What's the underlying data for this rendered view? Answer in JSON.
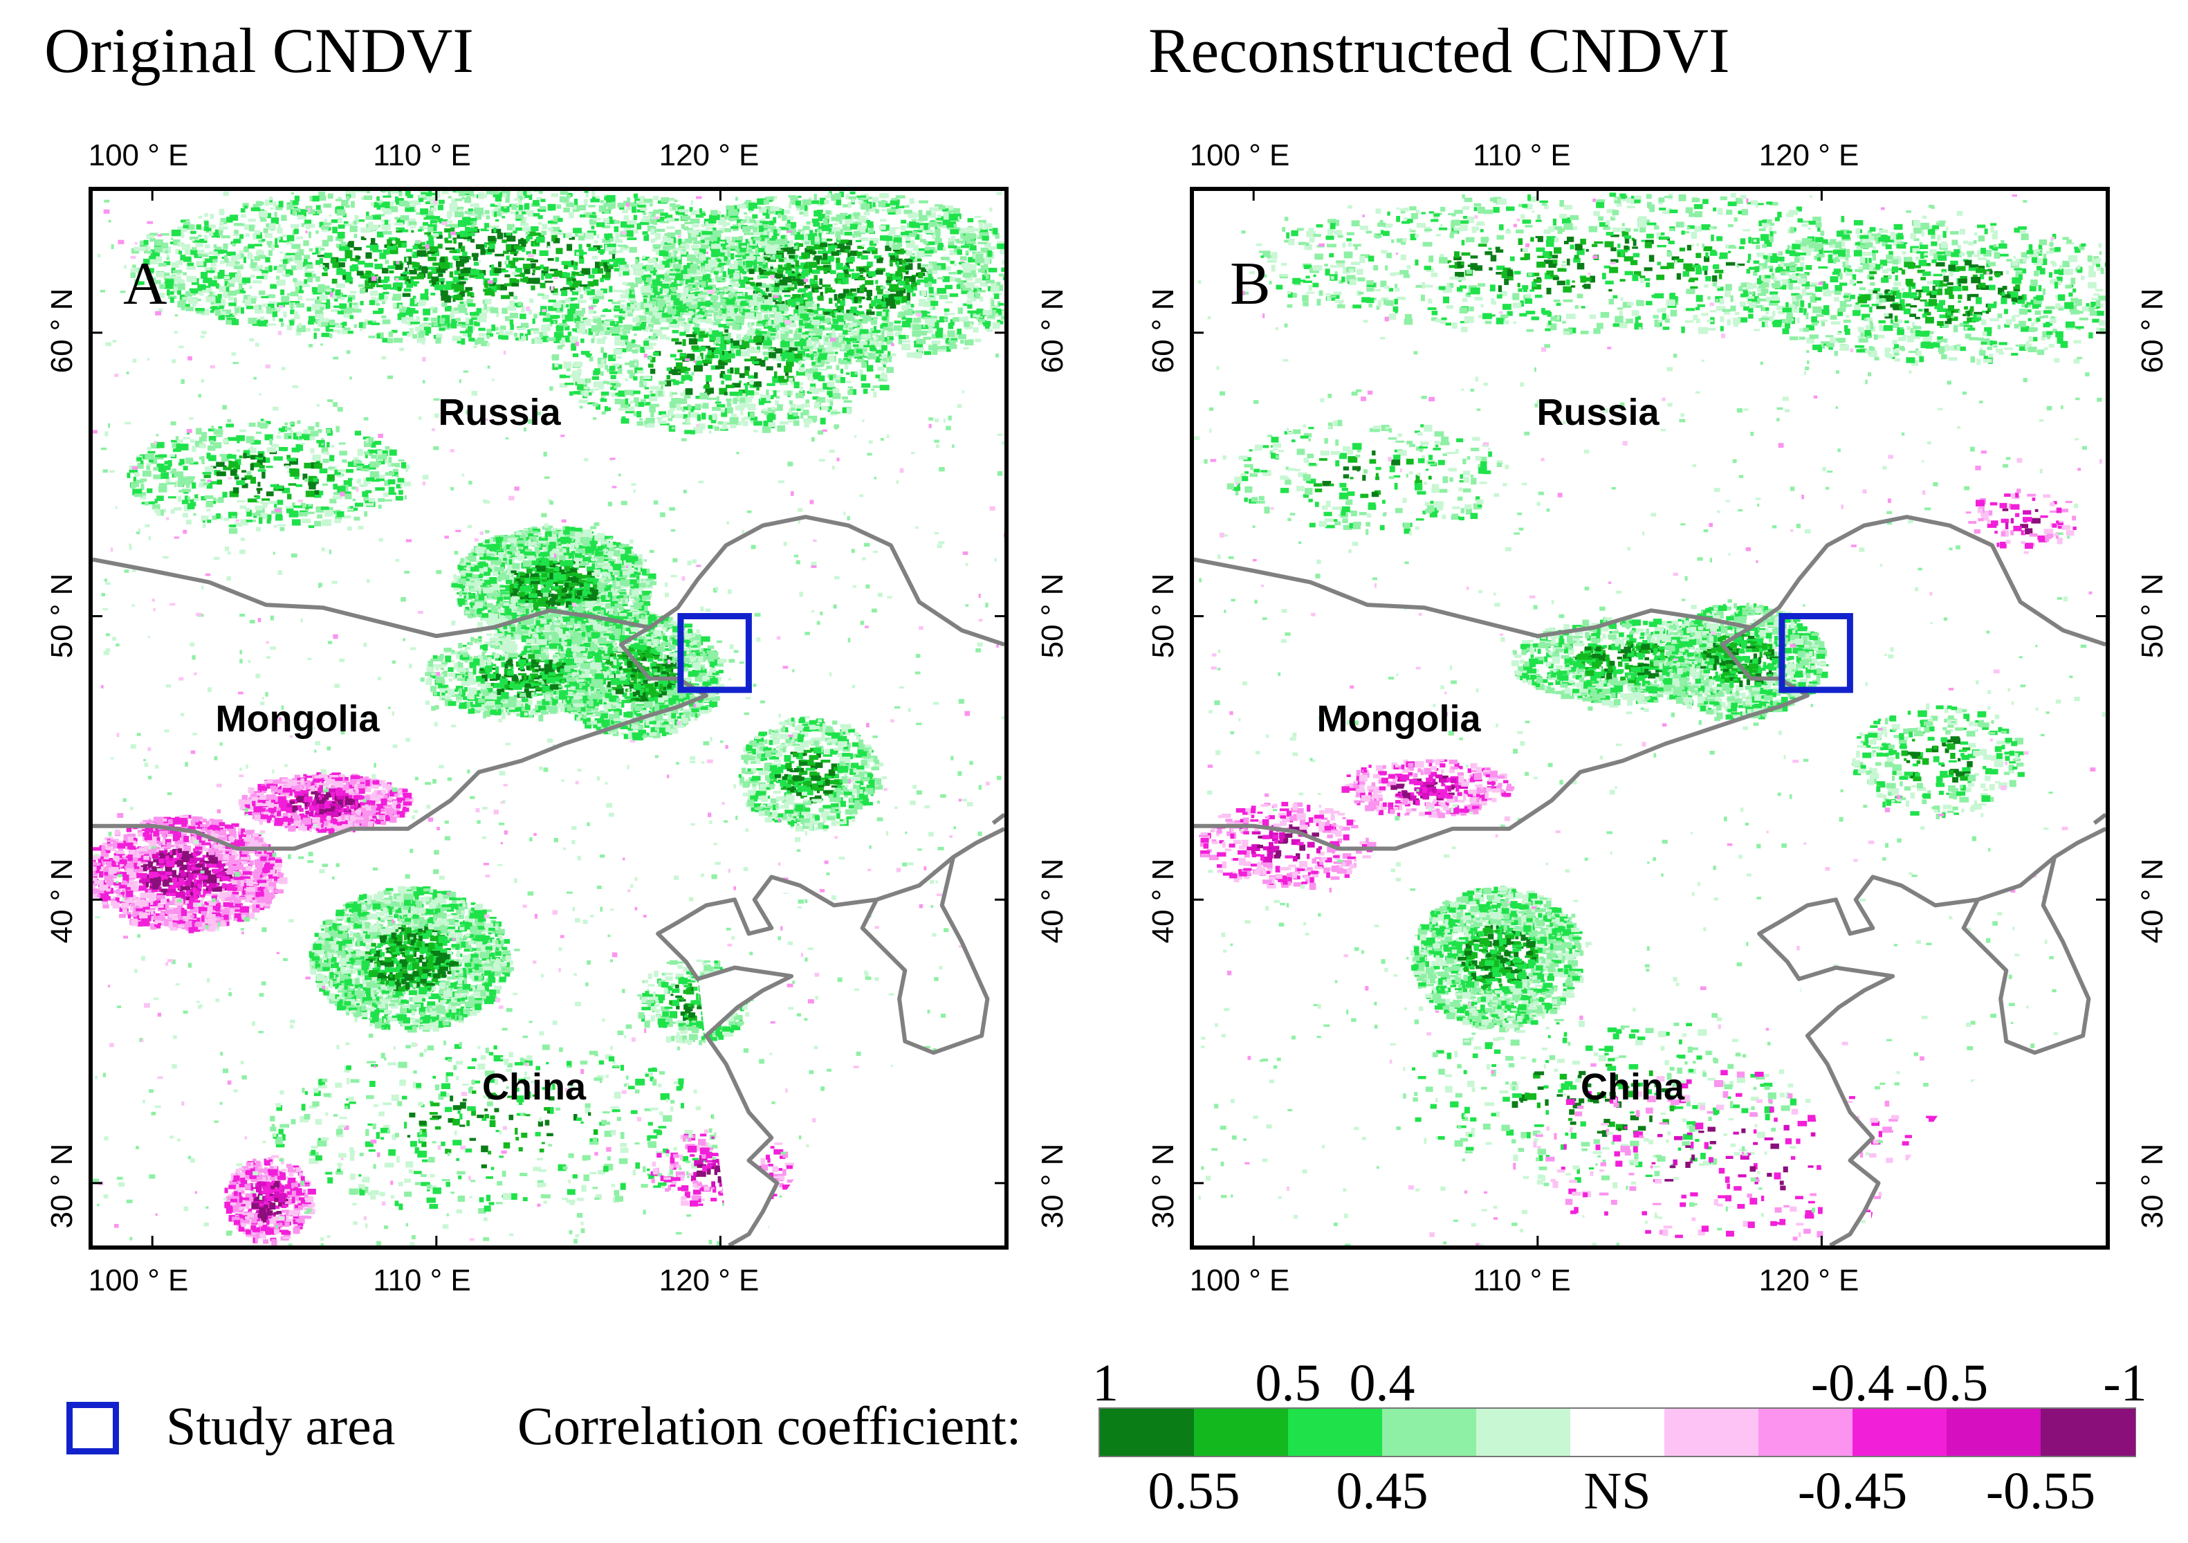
{
  "panels": [
    {
      "title": "Original CNDVI",
      "letter": "A",
      "countries": {
        "russia": "Russia",
        "mongolia": "Mongolia",
        "china": "China"
      }
    },
    {
      "title": "Reconstructed CNDVI",
      "letter": "B",
      "countries": {
        "russia": "Russia",
        "mongolia": "Mongolia",
        "china": "China"
      }
    }
  ],
  "lon_ticks": [
    "100 ° E",
    "110 ° E",
    "120 ° E"
  ],
  "lat_ticks": [
    "60 ° N",
    "50 ° N",
    "40 ° N",
    "30 ° N"
  ],
  "legend": {
    "study_area_label": "Study area",
    "correlation_label": "Correlation coefficient:",
    "top_numbers": [
      "1",
      "0.5",
      "0.4",
      "-0.4",
      "-0.5",
      "-1"
    ],
    "bottom_numbers": [
      "0.55",
      "0.45",
      "NS",
      "-0.45",
      "-0.55"
    ],
    "colors": [
      "#0a7d17",
      "#13b81f",
      "#1fe24a",
      "#8ef0a4",
      "#c8f7d3",
      "#ffffff",
      "#fcc3f4",
      "#fb93ef",
      "#f21fd9",
      "#d60fc0",
      "#8a0f7a"
    ]
  },
  "colors": {
    "study_area_box": "#1122cc",
    "border": "#808080",
    "frame": "#000000"
  }
}
